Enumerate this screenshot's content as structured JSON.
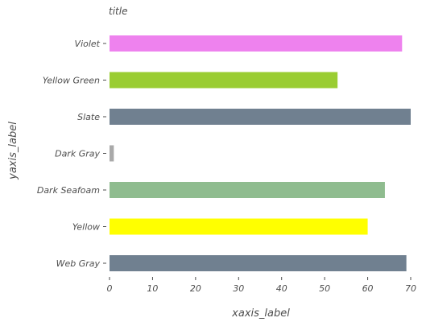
{
  "chart_data": {
    "type": "bar",
    "orientation": "horizontal",
    "title": "title",
    "xlabel": "xaxis_label",
    "ylabel": "yaxis_label",
    "categories": [
      "Web Gray",
      "Yellow",
      "Dark Seafoam",
      "Dark Gray",
      "Slate",
      "Yellow Green",
      "Violet"
    ],
    "values": [
      69,
      60,
      64,
      1,
      70,
      53,
      68
    ],
    "colors": [
      "#708090",
      "#ffff00",
      "#8fbc8f",
      "#a9a9a9",
      "#708090",
      "#9acd32",
      "#ee82ee"
    ],
    "xlim": [
      0,
      70
    ],
    "xticks": [
      0,
      10,
      20,
      30,
      40,
      50,
      60,
      70
    ],
    "grid": false,
    "legend": "none"
  }
}
